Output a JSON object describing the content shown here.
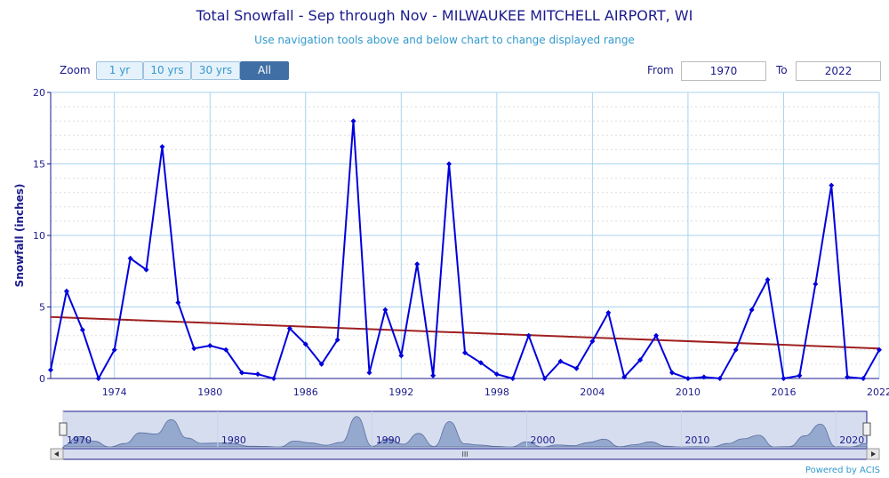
{
  "header": {
    "title": "Total Snowfall - Sep through Nov - MILWAUKEE MITCHELL AIRPORT, WI",
    "subtitle": "Use navigation tools above and below chart to change displayed range"
  },
  "zoom": {
    "label": "Zoom",
    "buttons": [
      "1 yr",
      "10 yrs",
      "30 yrs",
      "All"
    ],
    "selected": "All"
  },
  "range": {
    "from_label": "From",
    "from_value": "1970",
    "to_label": "To",
    "to_value": "2022"
  },
  "navigator": {
    "scroll_grip": "III",
    "labels": [
      "1970",
      "1980",
      "1990",
      "2000",
      "2010",
      "2020"
    ]
  },
  "footer": {
    "powered_by": "Powered by ACIS"
  },
  "colors": {
    "series": "#0000dd",
    "trend": "#a02020",
    "grid": "#a9d3ee",
    "axis_text": "#1a1a8c",
    "navigator_fill": "#7f95c2",
    "navigator_bg": "#d6ddef"
  },
  "chart_data": {
    "type": "line",
    "title": "Total Snowfall - Sep through Nov - MILWAUKEE MITCHELL AIRPORT, WI",
    "ylabel": "Snowfall (inches)",
    "xlabel": "",
    "xlim": [
      1970,
      2022
    ],
    "ylim": [
      0,
      20
    ],
    "xticks": [
      1974,
      1980,
      1986,
      1992,
      1998,
      2004,
      2010,
      2016,
      2022
    ],
    "yticks": [
      0,
      5,
      10,
      15,
      20
    ],
    "grid": true,
    "x": [
      1970,
      1971,
      1972,
      1973,
      1974,
      1975,
      1976,
      1977,
      1978,
      1979,
      1980,
      1981,
      1982,
      1983,
      1984,
      1985,
      1986,
      1987,
      1988,
      1989,
      1990,
      1991,
      1992,
      1993,
      1994,
      1995,
      1996,
      1997,
      1998,
      1999,
      2000,
      2001,
      2002,
      2003,
      2004,
      2005,
      2006,
      2007,
      2008,
      2009,
      2010,
      2011,
      2012,
      2013,
      2014,
      2015,
      2016,
      2017,
      2018,
      2019,
      2020,
      2021,
      2022
    ],
    "series": [
      {
        "values": [
          0.6,
          6.1,
          3.4,
          0.0,
          2.0,
          8.4,
          7.6,
          16.2,
          5.3,
          2.1,
          2.3,
          2.0,
          0.4,
          0.3,
          0.0,
          3.5,
          2.4,
          1.0,
          2.7,
          18.0,
          0.4,
          4.8,
          1.6,
          8.0,
          0.2,
          15.0,
          1.8,
          1.1,
          0.3,
          0.0,
          3.0,
          0.0,
          1.2,
          0.7,
          2.6,
          4.6,
          0.1,
          1.3,
          3.0,
          0.4,
          0.0,
          0.1,
          0.0,
          2.0,
          4.8,
          6.9,
          0.0,
          0.2,
          6.6,
          13.5,
          0.1,
          0.0,
          2.0
        ]
      },
      {
        "trend": [
          [
            1970,
            4.3
          ],
          [
            2022,
            2.1
          ]
        ]
      }
    ]
  }
}
